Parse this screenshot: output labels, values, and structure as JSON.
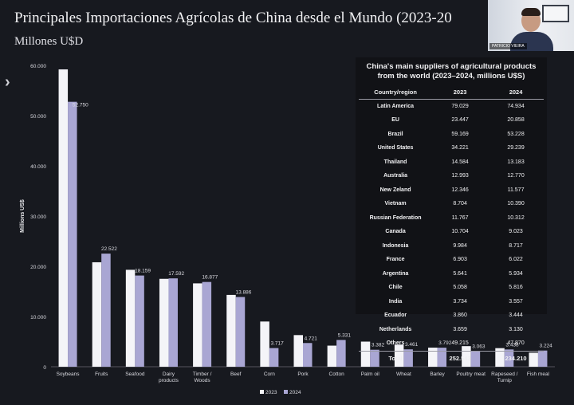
{
  "slide": {
    "title": "Principales Importaciones Agrícolas de China desde el Mundo (2023-20",
    "subtitle": "Millones U$D"
  },
  "video": {
    "participant_label": "PATRICIO VIEIRA"
  },
  "chart_data": {
    "type": "bar",
    "ylabel": "Millions US$",
    "ylim": [
      0,
      60000
    ],
    "yticks": [
      "0",
      "10.000",
      "20.000",
      "30.000",
      "40.000",
      "50.000",
      "60.000"
    ],
    "categories": [
      "Soybeans",
      "Fruits",
      "Seafood",
      "Dairy products",
      "Timber / Woods",
      "Beef",
      "Corn",
      "Pork",
      "Cotton",
      "Palm oil",
      "Wheat",
      "Barley",
      "Poultry meat",
      "Rapeseed / Turnip",
      "Fish meal"
    ],
    "category_lines": [
      [
        "Soybeans"
      ],
      [
        "Fruits"
      ],
      [
        "Seafood"
      ],
      [
        "Dairy",
        "products"
      ],
      [
        "Timber /",
        "Woods"
      ],
      [
        "Beef"
      ],
      [
        "Corn"
      ],
      [
        "Pork"
      ],
      [
        "Cotton"
      ],
      [
        "Palm oil"
      ],
      [
        "Wheat"
      ],
      [
        "Barley"
      ],
      [
        "Poultry meat"
      ],
      [
        "Rapeseed /",
        "Turnip"
      ],
      [
        "Fish meal"
      ]
    ],
    "series": [
      {
        "name": "2023",
        "color": "#f4f4f8",
        "values": [
          59200,
          20800,
          19300,
          17500,
          16600,
          14300,
          9000,
          6300,
          4200,
          5000,
          4400,
          3800,
          4100,
          3700,
          2800
        ]
      },
      {
        "name": "2024",
        "color": "#a9a6d3",
        "values": [
          52750,
          22522,
          18159,
          17592,
          16877,
          13886,
          3717,
          4721,
          5331,
          3382,
          3461,
          3792,
          3063,
          3438,
          3224
        ],
        "labels": [
          "52.750",
          "22.522",
          "18.159",
          "17.592",
          "16.877",
          "13.886",
          "3.717",
          "4.721",
          "5.331",
          "3.382",
          "3.461",
          "3.792",
          "3.063",
          "3.438",
          "3.224"
        ]
      }
    ],
    "legend": {
      "position": "bottom",
      "items": [
        "2023",
        "2024"
      ]
    }
  },
  "suppliers_table": {
    "title": "China's main suppliers of agricultural products from the world (2023–2024, millions U$S)",
    "headers": [
      "Country/region",
      "2023",
      "2024"
    ],
    "rows": [
      [
        "Latin America",
        "79.029",
        "74.934"
      ],
      [
        "EU",
        "23.447",
        "20.858"
      ],
      [
        "Brazil",
        "59.169",
        "53.228"
      ],
      [
        "United States",
        "34.221",
        "29.239"
      ],
      [
        "Thailand",
        "14.584",
        "13.183"
      ],
      [
        "Australia",
        "12.993",
        "12.770"
      ],
      [
        "New Zeland",
        "12.346",
        "11.577"
      ],
      [
        "Vietnam",
        "8.704",
        "10.390"
      ],
      [
        "Russian Federation",
        "11.767",
        "10.312"
      ],
      [
        "Canada",
        "10.704",
        "9.023"
      ],
      [
        "Indonesia",
        "9.984",
        "8.717"
      ],
      [
        "France",
        "6.903",
        "6.022"
      ],
      [
        "Argentina",
        "5.641",
        "5.934"
      ],
      [
        "Chile",
        "5.058",
        "5.816"
      ],
      [
        "India",
        "3.734",
        "3.557"
      ],
      [
        "Ecuador",
        "3.860",
        "3.444"
      ],
      [
        "Netherlands",
        "3.659",
        "3.130"
      ],
      [
        "Others",
        "49.215",
        "47.870"
      ]
    ],
    "total": [
      "Total",
      "252.543",
      "234.210"
    ]
  },
  "icons": {
    "nav": "chevron-right-icon"
  }
}
